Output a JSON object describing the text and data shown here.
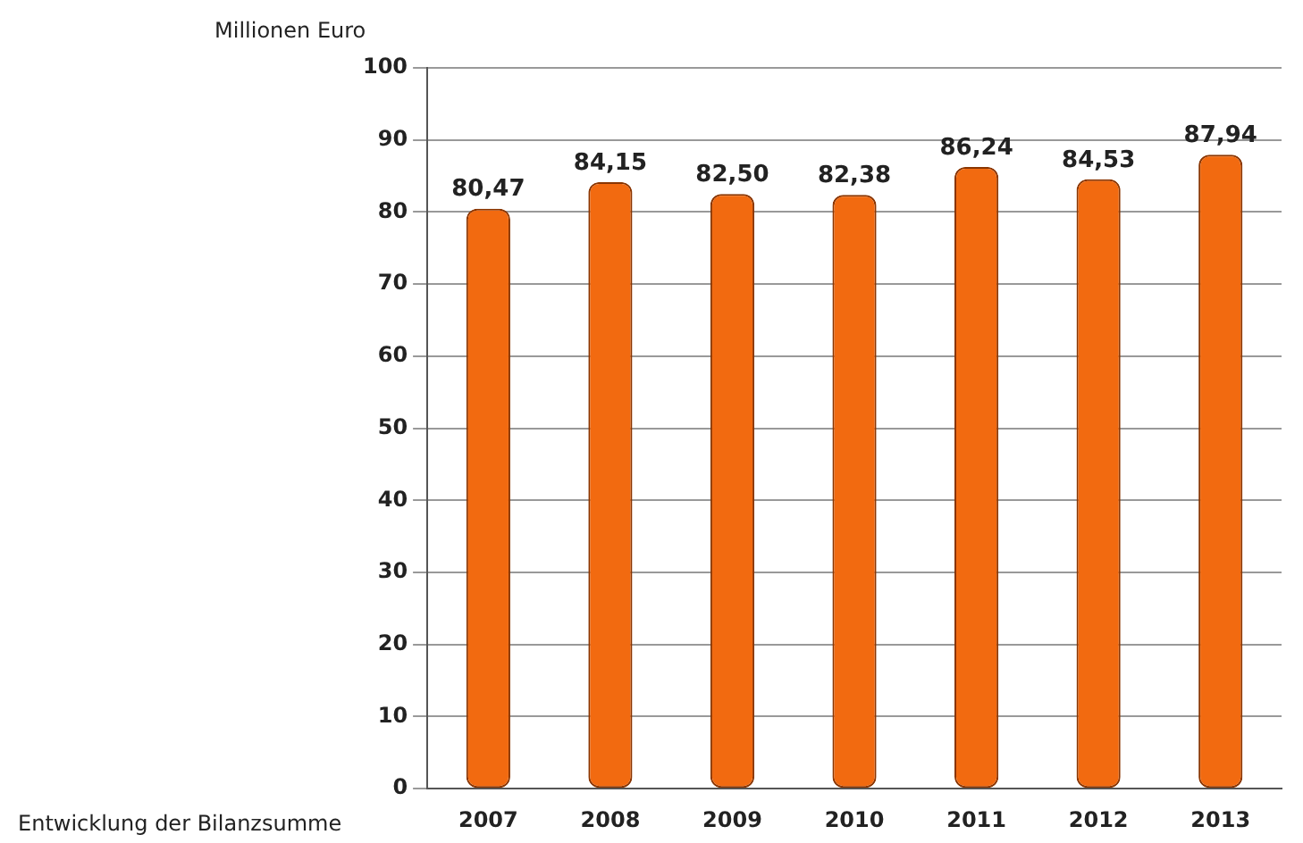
{
  "chart_data": {
    "type": "bar",
    "ylabel": "Millionen Euro",
    "annotations": [
      "Entwicklung der Bilanzsumme"
    ],
    "categories": [
      "2007",
      "2008",
      "2009",
      "2010",
      "2011",
      "2012",
      "2013"
    ],
    "values": [
      80.47,
      84.15,
      82.5,
      82.38,
      86.24,
      84.53,
      87.94
    ],
    "value_labels": [
      "80,47",
      "84,15",
      "82,50",
      "82,38",
      "86,24",
      "84,53",
      "87,94"
    ],
    "color": "#f26a10",
    "ylim": [
      0,
      100
    ],
    "yticks": [
      0,
      10,
      20,
      30,
      40,
      50,
      60,
      70,
      80,
      90,
      100
    ],
    "grid": "y",
    "legend": false
  }
}
